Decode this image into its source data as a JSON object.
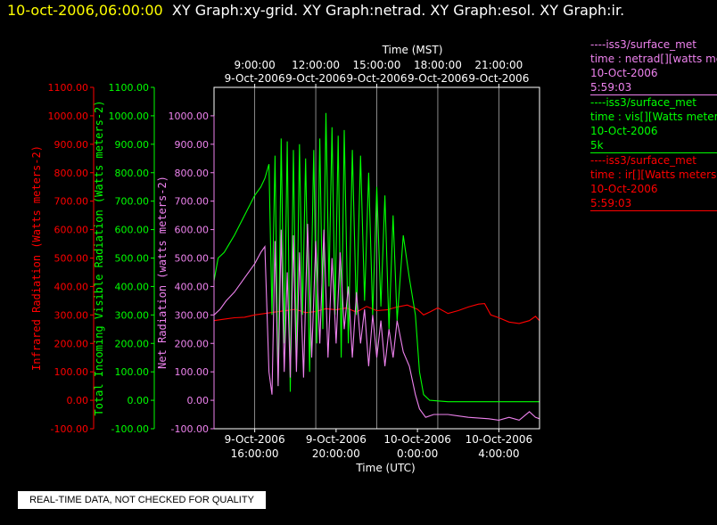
{
  "header": {
    "timestamp": "10-oct-2006,06:00:00",
    "graphs": "XY Graph:xy-grid.  XY Graph:netrad.  XY Graph:esol.  XY Graph:ir."
  },
  "colors": {
    "ir": "#ff0000",
    "vis": "#00ff00",
    "net": "#ee82ee",
    "title": "#ffff00",
    "grid": "#ffffff"
  },
  "legend": [
    {
      "dataset": "----iss3/surface_met",
      "field": "time : netrad[][watts meters-2]",
      "date": "10-Oct-2006",
      "time": "5:59:03"
    },
    {
      "dataset": "----iss3/surface_met",
      "field": "time : vis[][Watts meters-2]",
      "date": "10-Oct-2006",
      "time": "5k"
    },
    {
      "dataset": "----iss3/surface_met",
      "field": "time : ir[][Watts meters-2]",
      "date": "10-Oct-2006",
      "time": "5:59:03"
    }
  ],
  "quality_note": "REAL-TIME DATA, NOT CHECKED FOR QUALITY",
  "chart_data": {
    "type": "line",
    "top_axis": {
      "title": "Time (MST)",
      "ticks": [
        {
          "time": "9:00:00",
          "date": "9-Oct-2006",
          "x": 9
        },
        {
          "time": "12:00:00",
          "date": "9-Oct-2006",
          "x": 12
        },
        {
          "time": "15:00:00",
          "date": "9-Oct-2006",
          "x": 15
        },
        {
          "time": "18:00:00",
          "date": "9-Oct-2006",
          "x": 18
        },
        {
          "time": "21:00:00",
          "date": "9-Oct-2006",
          "x": 21
        }
      ]
    },
    "bottom_axis": {
      "title": "Time (UTC)",
      "ticks": [
        {
          "date": "9-Oct-2006",
          "time": "16:00:00",
          "x": 9
        },
        {
          "date": "9-Oct-2006",
          "time": "20:00:00",
          "x": 13
        },
        {
          "date": "10-Oct-2006",
          "time": "0:00:00",
          "x": 17
        },
        {
          "date": "10-Oct-2006",
          "time": "4:00:00",
          "x": 21
        }
      ]
    },
    "x_unit": "hours MST, 9-Oct-2006",
    "xlim": [
      7,
      23
    ],
    "ylim": [
      -100,
      1100
    ],
    "ytick_values": [
      -100,
      0,
      100,
      200,
      300,
      400,
      500,
      600,
      700,
      800,
      900,
      1000,
      1100
    ],
    "y_axes": [
      {
        "label": "Infrared Radiation (Watts meters-2)",
        "color": "#ff0000",
        "ticks": [
          "-100.00",
          "0.00",
          "100.00",
          "200.00",
          "300.00",
          "400.00",
          "500.00",
          "600.00",
          "700.00",
          "800.00",
          "900.00",
          "1000.00",
          "1100.00"
        ]
      },
      {
        "label": "Total Incoming Visible Radiation (Watts meters-2)",
        "color": "#00ff00",
        "ticks": [
          "-100.00",
          "0.00",
          "100.00",
          "200.00",
          "300.00",
          "400.00",
          "500.00",
          "600.00",
          "700.00",
          "800.00",
          "900.00",
          "1000.00",
          "1100.00"
        ]
      },
      {
        "label": "Net Radiation (watts meters-2)",
        "color": "#ee82ee",
        "ticks": [
          "-100.00",
          "0.00",
          "100.00",
          "200.00",
          "300.00",
          "400.00",
          "500.00",
          "600.00",
          "700.00",
          "800.00",
          "900.00",
          "1000.00"
        ]
      }
    ],
    "grid": "vertical lines at time ticks",
    "series": [
      {
        "key": "ir",
        "color": "#ff0000",
        "points": [
          [
            7,
            280
          ],
          [
            7.5,
            285
          ],
          [
            8,
            290
          ],
          [
            8.5,
            292
          ],
          [
            9,
            300
          ],
          [
            9.5,
            305
          ],
          [
            10,
            310
          ],
          [
            10.5,
            315
          ],
          [
            11,
            320
          ],
          [
            11.5,
            308
          ],
          [
            12,
            312
          ],
          [
            12.5,
            322
          ],
          [
            13,
            318
          ],
          [
            13.5,
            325
          ],
          [
            14,
            310
          ],
          [
            14.5,
            330
          ],
          [
            15,
            315
          ],
          [
            15.5,
            318
          ],
          [
            16,
            328
          ],
          [
            16.5,
            335
          ],
          [
            17,
            320
          ],
          [
            17.3,
            300
          ],
          [
            17.6,
            310
          ],
          [
            18,
            325
          ],
          [
            18.5,
            305
          ],
          [
            19,
            315
          ],
          [
            19.5,
            328
          ],
          [
            20,
            338
          ],
          [
            20.3,
            340
          ],
          [
            20.6,
            300
          ],
          [
            21,
            290
          ],
          [
            21.5,
            275
          ],
          [
            22,
            270
          ],
          [
            22.5,
            280
          ],
          [
            22.8,
            295
          ],
          [
            23,
            280
          ]
        ]
      },
      {
        "key": "vis",
        "color": "#00ff00",
        "points": [
          [
            7,
            420
          ],
          [
            7.2,
            500
          ],
          [
            7.5,
            520
          ],
          [
            8,
            580
          ],
          [
            8.5,
            650
          ],
          [
            9,
            720
          ],
          [
            9.3,
            750
          ],
          [
            9.5,
            780
          ],
          [
            9.7,
            830
          ],
          [
            9.85,
            300
          ],
          [
            10,
            860
          ],
          [
            10.15,
            50
          ],
          [
            10.3,
            920
          ],
          [
            10.45,
            200
          ],
          [
            10.6,
            910
          ],
          [
            10.75,
            30
          ],
          [
            10.9,
            880
          ],
          [
            11.05,
            150
          ],
          [
            11.2,
            900
          ],
          [
            11.35,
            300
          ],
          [
            11.5,
            850
          ],
          [
            11.7,
            100
          ],
          [
            11.9,
            880
          ],
          [
            12.05,
            200
          ],
          [
            12.2,
            920
          ],
          [
            12.35,
            250
          ],
          [
            12.5,
            1010
          ],
          [
            12.65,
            400
          ],
          [
            12.8,
            960
          ],
          [
            12.95,
            300
          ],
          [
            13.1,
            930
          ],
          [
            13.25,
            150
          ],
          [
            13.4,
            950
          ],
          [
            13.6,
            200
          ],
          [
            13.8,
            880
          ],
          [
            14,
            300
          ],
          [
            14.2,
            860
          ],
          [
            14.4,
            350
          ],
          [
            14.6,
            800
          ],
          [
            14.8,
            300
          ],
          [
            15,
            750
          ],
          [
            15.2,
            330
          ],
          [
            15.4,
            720
          ],
          [
            15.6,
            250
          ],
          [
            15.8,
            650
          ],
          [
            16,
            280
          ],
          [
            16.3,
            580
          ],
          [
            16.6,
            430
          ],
          [
            16.9,
            300
          ],
          [
            17.1,
            100
          ],
          [
            17.3,
            20
          ],
          [
            17.6,
            0
          ],
          [
            18.5,
            -5
          ],
          [
            20,
            -5
          ],
          [
            22,
            -5
          ],
          [
            23,
            -5
          ]
        ]
      },
      {
        "key": "net",
        "color": "#ee82ee",
        "points": [
          [
            7,
            300
          ],
          [
            7.3,
            320
          ],
          [
            7.6,
            350
          ],
          [
            8,
            380
          ],
          [
            8.5,
            430
          ],
          [
            9,
            480
          ],
          [
            9.3,
            520
          ],
          [
            9.5,
            540
          ],
          [
            9.7,
            100
          ],
          [
            9.85,
            20
          ],
          [
            10,
            560
          ],
          [
            10.15,
            50
          ],
          [
            10.3,
            600
          ],
          [
            10.45,
            100
          ],
          [
            10.6,
            450
          ],
          [
            10.75,
            80
          ],
          [
            10.9,
            580
          ],
          [
            11.05,
            100
          ],
          [
            11.2,
            520
          ],
          [
            11.4,
            80
          ],
          [
            11.6,
            620
          ],
          [
            11.8,
            150
          ],
          [
            12,
            560
          ],
          [
            12.2,
            200
          ],
          [
            12.4,
            600
          ],
          [
            12.6,
            150
          ],
          [
            12.8,
            500
          ],
          [
            13,
            200
          ],
          [
            13.2,
            520
          ],
          [
            13.4,
            250
          ],
          [
            13.6,
            400
          ],
          [
            13.8,
            150
          ],
          [
            14,
            380
          ],
          [
            14.2,
            200
          ],
          [
            14.4,
            320
          ],
          [
            14.6,
            120
          ],
          [
            14.8,
            300
          ],
          [
            15,
            150
          ],
          [
            15.2,
            280
          ],
          [
            15.4,
            120
          ],
          [
            15.6,
            250
          ],
          [
            15.8,
            150
          ],
          [
            16,
            280
          ],
          [
            16.3,
            170
          ],
          [
            16.6,
            120
          ],
          [
            16.9,
            20
          ],
          [
            17.1,
            -30
          ],
          [
            17.4,
            -60
          ],
          [
            17.8,
            -50
          ],
          [
            18.5,
            -50
          ],
          [
            19.5,
            -60
          ],
          [
            20.5,
            -65
          ],
          [
            21,
            -70
          ],
          [
            21.5,
            -60
          ],
          [
            22,
            -70
          ],
          [
            22.5,
            -40
          ],
          [
            22.8,
            -60
          ],
          [
            23,
            -65
          ]
        ]
      }
    ]
  }
}
